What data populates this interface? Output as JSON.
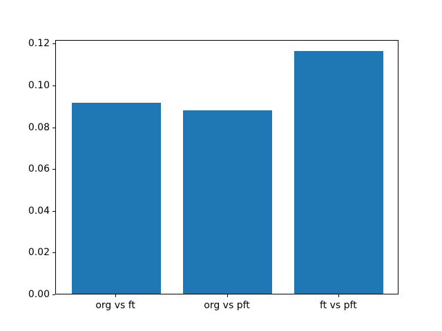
{
  "figure": {
    "background_color": "#ffffff",
    "axis_color": "#000000",
    "text_color": "#000000"
  },
  "chart_data": {
    "type": "bar",
    "title": "",
    "xlabel": "",
    "ylabel": "",
    "categories": [
      "org vs ft",
      "org vs pft",
      "ft vs pft"
    ],
    "values": [
      0.0915,
      0.0877,
      0.1161
    ],
    "bar_color": "#1f77b4",
    "bar_width_fraction": 0.8,
    "ylim": [
      0,
      0.1218
    ],
    "xlim": [
      -0.54,
      2.54
    ],
    "yticks": [
      0.0,
      0.02,
      0.04,
      0.06,
      0.08,
      0.1,
      0.12
    ],
    "ytick_labels": [
      "0.00",
      "0.02",
      "0.04",
      "0.06",
      "0.08",
      "0.10",
      "0.12"
    ],
    "grid": false,
    "legend": null,
    "spines": "full-box"
  }
}
